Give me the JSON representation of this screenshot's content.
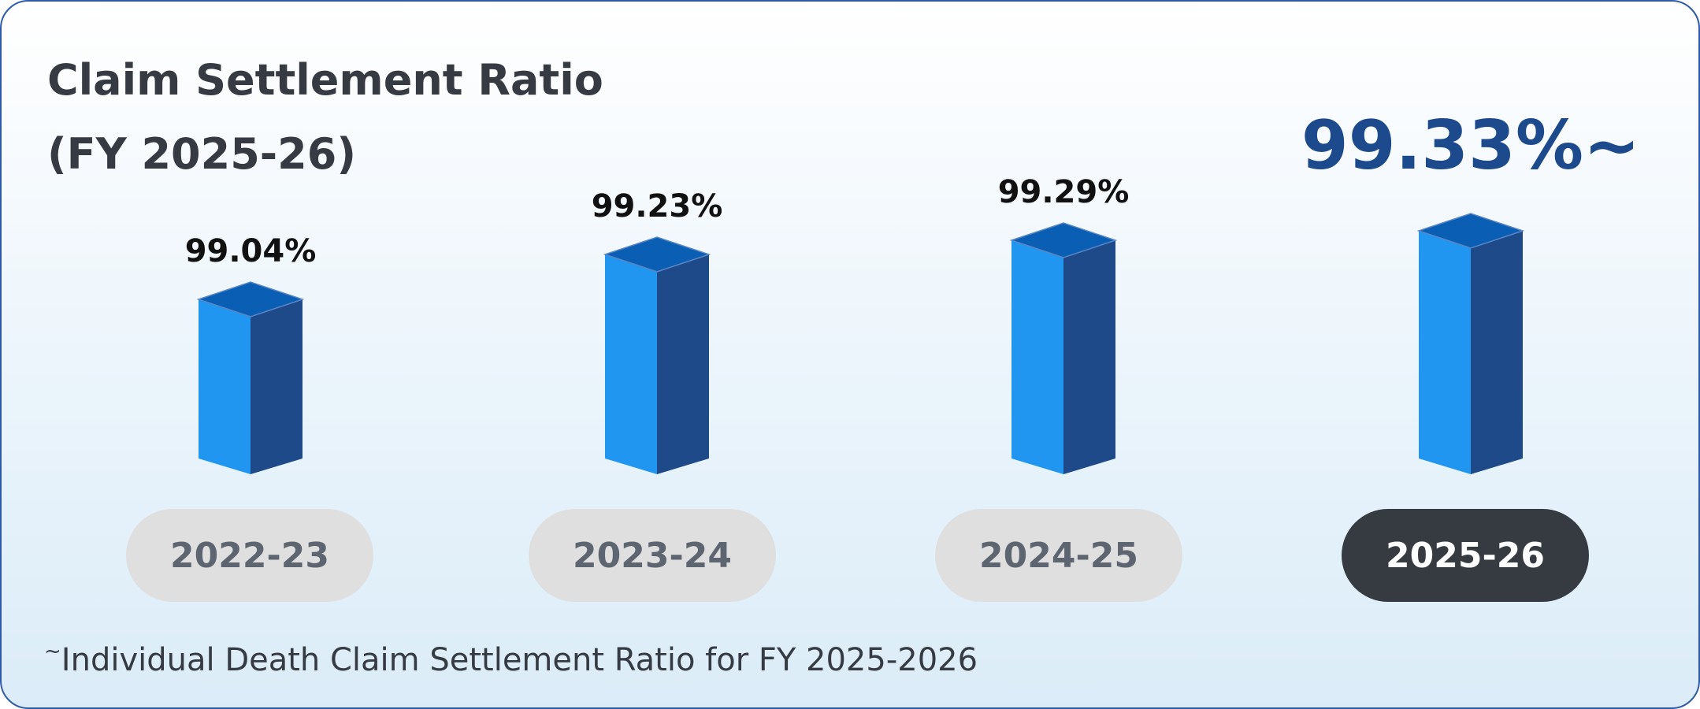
{
  "title_line1": "Claim Settlement Ratio",
  "title_line2": "(FY 2025-26)",
  "footnote": {
    "mark": "~",
    "text": "Individual Death Claim Settlement Ratio for FY 2025-2026"
  },
  "colors": {
    "bar_front": "#2196f0",
    "bar_side": "#1e4a8a",
    "bar_top": "#0a5fb4",
    "highlight_label": "#1c4a8c",
    "pill_inactive": "#dfdfdf",
    "pill_active": "#363a41"
  },
  "chart_data": {
    "type": "bar",
    "title": "Claim Settlement Ratio (FY 2025-26)",
    "categories": [
      "2022-23",
      "2023-24",
      "2024-25",
      "2025-26"
    ],
    "values": [
      99.04,
      99.23,
      99.29,
      99.33
    ],
    "value_labels": [
      "99.04%",
      "99.23%",
      "99.29%",
      "99.33%~"
    ],
    "highlight_index": 3,
    "style": "3d-column",
    "grid": false,
    "legend": "none"
  }
}
